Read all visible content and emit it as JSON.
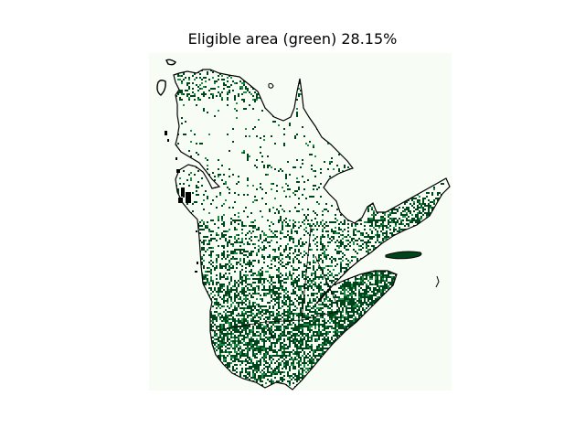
{
  "figure": {
    "title": "Eligible area (green) 28.15%"
  },
  "map": {
    "region": "Quebec",
    "eligible_fraction": 0.2815,
    "colors": {
      "background": "#f7fcf5",
      "eligible": "#00441b",
      "eligible_light": "#238b45",
      "boundary": "#000000",
      "page": "#ffffff"
    }
  }
}
